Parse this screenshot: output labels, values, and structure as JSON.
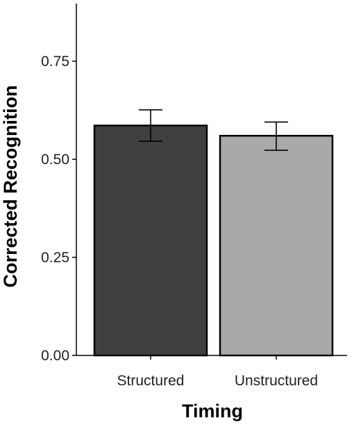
{
  "chart_data": {
    "type": "bar",
    "title": "",
    "xlabel": "Timing",
    "ylabel": "Corrected Recognition",
    "categories": [
      "Structured",
      "Unstructured"
    ],
    "values": [
      0.586,
      0.56
    ],
    "error_low": [
      0.546,
      0.523
    ],
    "error_high": [
      0.626,
      0.595
    ],
    "bar_colors": [
      "#404040",
      "#a9a9a9"
    ],
    "ylim": [
      0,
      0.9
    ],
    "yticks": [
      0.0,
      0.25,
      0.5,
      0.75
    ],
    "ytick_labels": [
      "0.00",
      "0.25",
      "0.50",
      "0.75"
    ],
    "grid": false,
    "legend": "none"
  }
}
